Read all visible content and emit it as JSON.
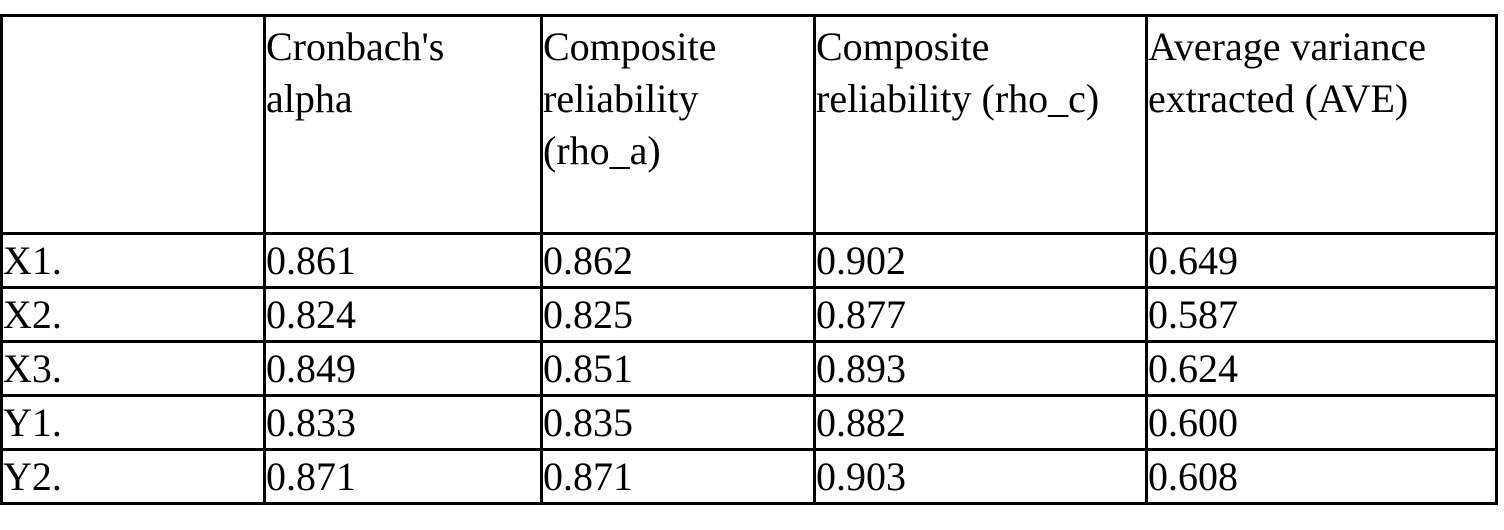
{
  "document": {
    "background_color": "#ffffff",
    "text_color": "#000000",
    "border_color": "#000000"
  },
  "table": {
    "columns": [
      {
        "label": ""
      },
      {
        "label": "Cronbach's alpha"
      },
      {
        "label": "Composite reliability (rho_a)"
      },
      {
        "label": "Composite reliability (rho_c)"
      },
      {
        "label": "Average variance extracted (AVE)"
      }
    ],
    "rows": [
      {
        "label": "X1.",
        "values": [
          "0.861",
          "0.862",
          "0.902",
          "0.649"
        ]
      },
      {
        "label": "X2.",
        "values": [
          "0.824",
          "0.825",
          "0.877",
          "0.587"
        ]
      },
      {
        "label": "X3.",
        "values": [
          "0.849",
          "0.851",
          "0.893",
          "0.624"
        ]
      },
      {
        "label": "Y1.",
        "values": [
          "0.833",
          "0.835",
          "0.882",
          "0.600"
        ]
      },
      {
        "label": "Y2.",
        "values": [
          "0.871",
          "0.871",
          "0.903",
          "0.608"
        ]
      }
    ]
  },
  "chart_data": {
    "type": "table",
    "columns": [
      "",
      "Cronbach's alpha",
      "Composite reliability (rho_a)",
      "Composite reliability (rho_c)",
      "Average variance extracted (AVE)"
    ],
    "rows": [
      [
        "X1.",
        0.861,
        0.862,
        0.902,
        0.649
      ],
      [
        "X2.",
        0.824,
        0.825,
        0.877,
        0.587
      ],
      [
        "X3.",
        0.849,
        0.851,
        0.893,
        0.624
      ],
      [
        "Y1.",
        0.833,
        0.835,
        0.882,
        0.6
      ],
      [
        "Y2.",
        0.871,
        0.871,
        0.903,
        0.608
      ]
    ]
  }
}
